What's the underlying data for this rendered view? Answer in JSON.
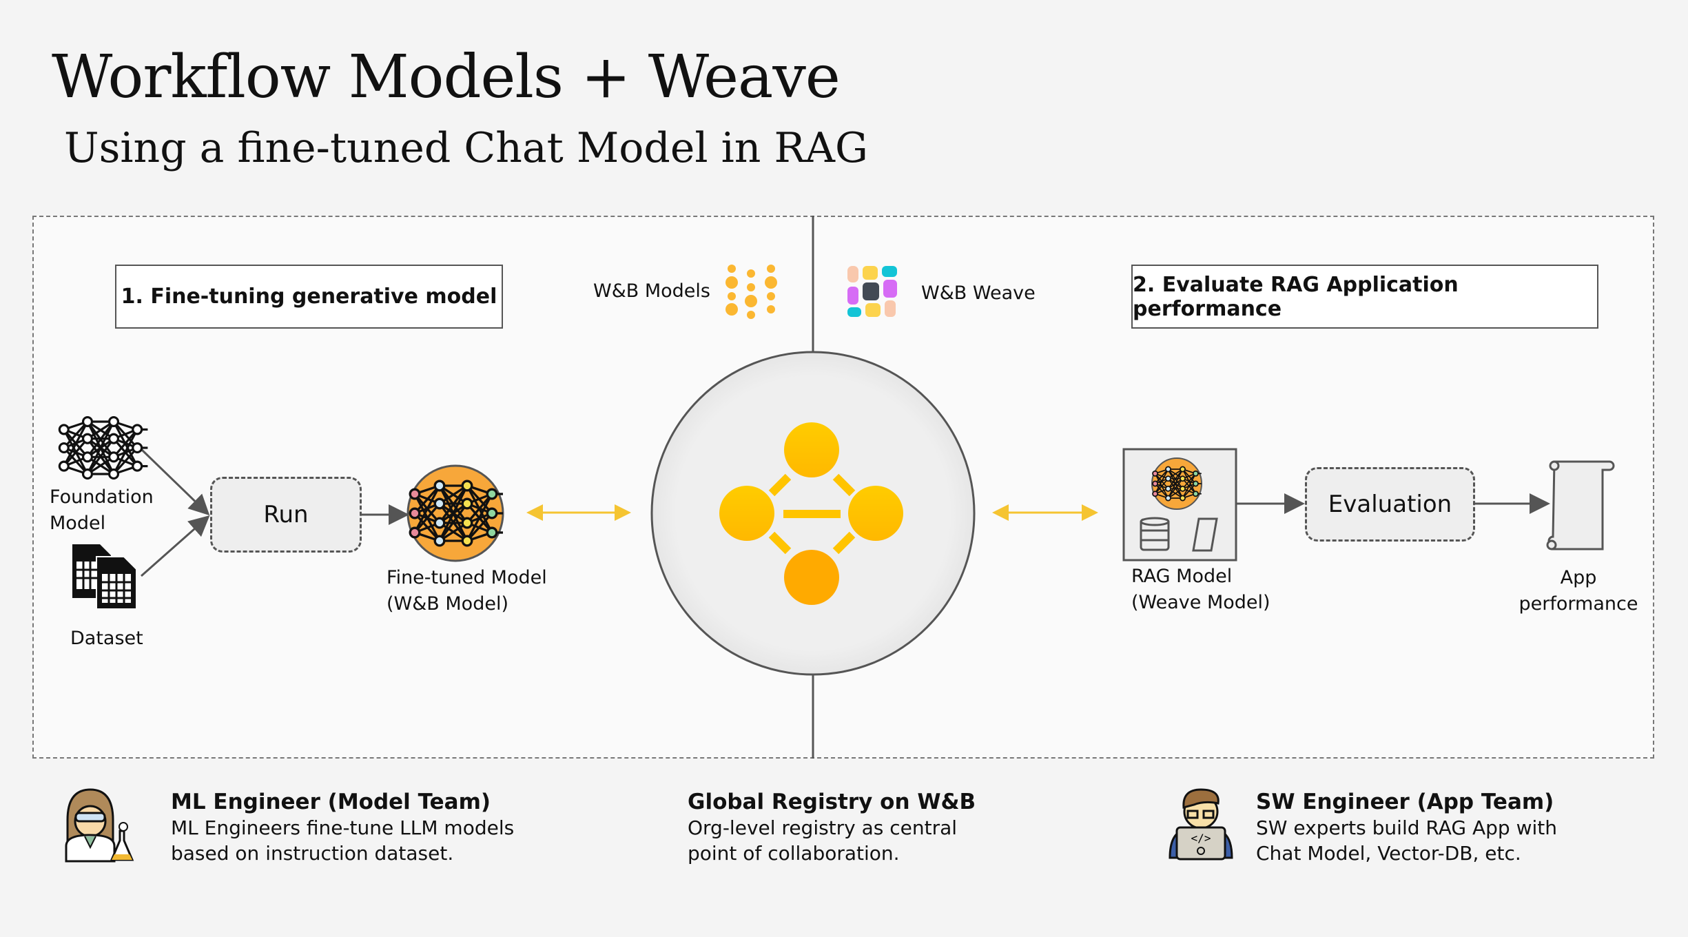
{
  "header": {
    "title": "Workflow Models + Weave",
    "subtitle": "Using a fine-tuned Chat Model in RAG"
  },
  "steps": {
    "step1": "1. Fine-tuning generative model",
    "step2": "2. Evaluate RAG Application performance"
  },
  "products": {
    "models": "W&B Models",
    "weave": "W&B Weave"
  },
  "left_flow": {
    "foundation_model": [
      "Foundation",
      "Model"
    ],
    "dataset": "Dataset",
    "run": "Run",
    "fine_tuned_model": [
      "Fine-tuned Model",
      "(W&B Model)"
    ]
  },
  "right_flow": {
    "rag_model": [
      "RAG Model",
      "(Weave Model)"
    ],
    "evaluation": "Evaluation",
    "app_performance": [
      "App",
      "performance"
    ]
  },
  "personas": [
    {
      "title": "ML Engineer (Model Team)",
      "lines": [
        "ML Engineers fine-tune LLM models",
        "based on instruction dataset."
      ]
    },
    {
      "title": "Global Registry on W&B",
      "lines": [
        "Org-level registry as central",
        "point of collaboration."
      ]
    },
    {
      "title": "SW Engineer (App Team)",
      "lines": [
        "SW experts build RAG App with",
        "Chat Model, Vector-DB, etc."
      ]
    }
  ],
  "colors": {
    "accent_yellow": "#ffc933",
    "registry_orange": "#ffaa00",
    "model_orange": "#f7a73a",
    "arrow_gray": "#555555",
    "weave_pink": "#f9c8ad",
    "weave_yellow": "#fcd34d",
    "weave_cyan": "#13c4d6",
    "weave_purple": "#d66cf5",
    "weave_dark": "#424a54"
  }
}
